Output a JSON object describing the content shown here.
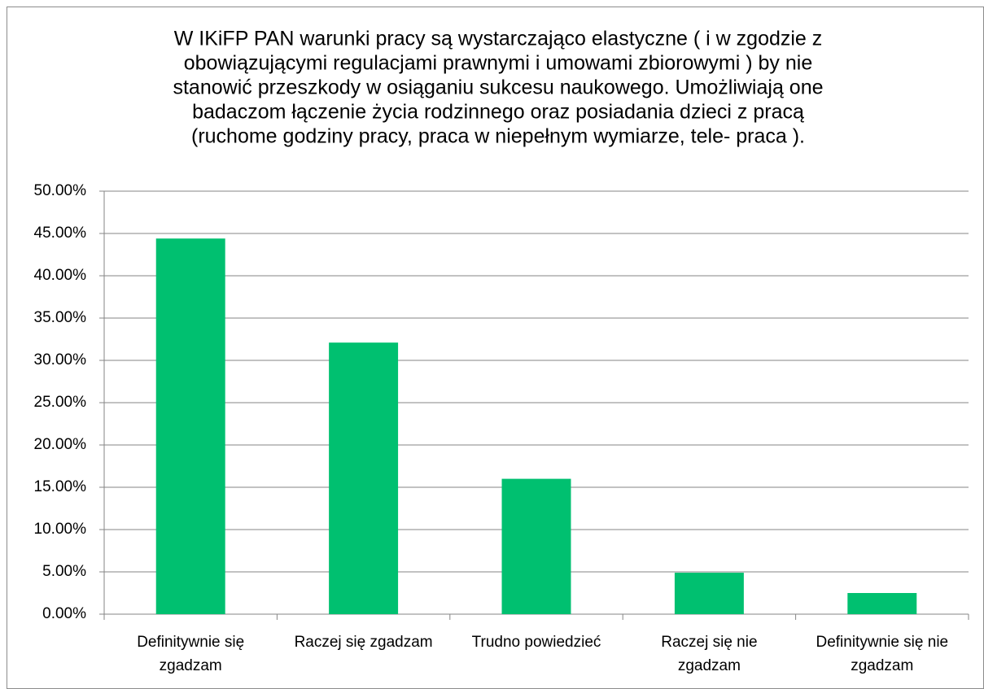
{
  "chart_data": {
    "type": "bar",
    "title": [
      "W IKiFP PAN warunki pracy są wystarczająco elastyczne ( i w zgodzie z",
      "obowiązującymi regulacjami prawnymi i umowami zbiorowymi ) by nie",
      "stanowić przeszkody w osiąganiu sukcesu naukowego. Umożliwiają one",
      "badaczom łączenie życia rodzinnego oraz posiadania dzieci z pracą",
      "(ruchome godziny pracy, praca w niepełnym wymiarze, tele- praca )."
    ],
    "categories": [
      "Definitywnie się zgadzam",
      "Raczej się zgadzam",
      "Trudno powiedzieć",
      "Raczej się nie zgadzam",
      "Definitywnie się nie zgadzam"
    ],
    "values": [
      44.4,
      32.1,
      16.0,
      4.9,
      2.5
    ],
    "color": "#00c070",
    "ylim": [
      0,
      50
    ],
    "yticks": [
      {
        "value": 0,
        "label": "0.00%"
      },
      {
        "value": 5,
        "label": "5.00%"
      },
      {
        "value": 10,
        "label": "10.00%"
      },
      {
        "value": 15,
        "label": "15.00%"
      },
      {
        "value": 20,
        "label": "20.00%"
      },
      {
        "value": 25,
        "label": "25.00%"
      },
      {
        "value": 30,
        "label": "30.00%"
      },
      {
        "value": 35,
        "label": "35.00%"
      },
      {
        "value": 40,
        "label": "40.00%"
      },
      {
        "value": 45,
        "label": "45.00%"
      },
      {
        "value": 50,
        "label": "50.00%"
      }
    ],
    "grid": true
  }
}
